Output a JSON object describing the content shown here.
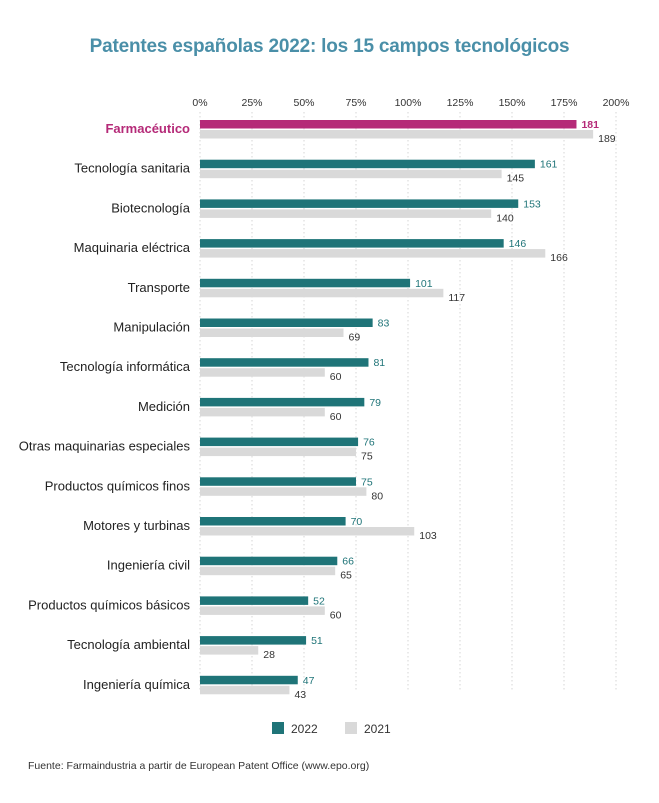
{
  "chart_data": {
    "type": "bar",
    "orientation": "horizontal",
    "title": "Patentes españolas 2022: los 15 campos tecnológicos",
    "source": "Fuente: Farmaindustria a partir de European Patent Office (www.epo.org)",
    "xlim": [
      0,
      200
    ],
    "x_ticks": [
      "0%",
      "25%",
      "50%",
      "75%",
      "100%",
      "125%",
      "150%",
      "175%",
      "200%"
    ],
    "x_tick_values": [
      0,
      25,
      50,
      75,
      100,
      125,
      150,
      175,
      200
    ],
    "grid": "vertical-dotted",
    "legend_position": "bottom-center",
    "highlight_category": "Farmacéutico",
    "categories": [
      "Farmacéutico",
      "Tecnología sanitaria",
      "Biotecnología",
      "Maquinaria eléctrica",
      "Transporte",
      "Manipulación",
      "Tecnología informática",
      "Medición",
      "Otras maquinarias especiales",
      "Productos químicos finos",
      "Motores y turbinas",
      "Ingeniería civil",
      "Productos químicos básicos",
      "Tecnología ambiental",
      "Ingeniería química"
    ],
    "series": [
      {
        "name": "2022",
        "color": "#1f7478",
        "label_color": "#1f7478",
        "values": [
          181,
          161,
          153,
          146,
          101,
          83,
          81,
          79,
          76,
          75,
          70,
          66,
          52,
          51,
          47
        ]
      },
      {
        "name": "2021",
        "color": "#d9d9d9",
        "label_color": "#333333",
        "values": [
          189,
          145,
          140,
          166,
          117,
          69,
          60,
          60,
          75,
          80,
          103,
          65,
          60,
          28,
          43
        ]
      }
    ]
  },
  "colors": {
    "title": "#4a8fa8",
    "highlight": "#b52a78",
    "label_text": "#222222",
    "grid": "#cccccc"
  }
}
